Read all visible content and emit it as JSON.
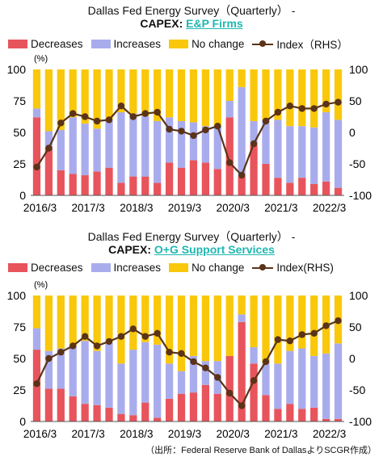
{
  "chart_data": [
    {
      "type": "bar",
      "title": "Dallas Fed Energy Survey（Quarterly）  -",
      "subtitle_prefix": "CAPEX:",
      "subtitle_highlight": "E&P Firms",
      "y_unit": "(%)",
      "stacked": true,
      "ylim": [
        0,
        100
      ],
      "yticks": [
        "0",
        "25",
        "50",
        "75",
        "100"
      ],
      "y2lim": [
        -100,
        100
      ],
      "y2ticks": [
        "-100",
        "-50",
        "0",
        "50",
        "100"
      ],
      "x_tick_labels": [
        "2016/3",
        "2017/3",
        "2018/3",
        "2019/3",
        "2020/3",
        "2021/3",
        "2022/3"
      ],
      "legend": [
        "Decreases",
        "Increases",
        "No change",
        "Index（RHS）"
      ],
      "categories": [
        "2016Q1",
        "2016Q2",
        "2016Q3",
        "2016Q4",
        "2017Q1",
        "2017Q2",
        "2017Q3",
        "2017Q4",
        "2018Q1",
        "2018Q2",
        "2018Q3",
        "2018Q4",
        "2019Q1",
        "2019Q2",
        "2019Q3",
        "2019Q4",
        "2020Q1",
        "2020Q2",
        "2020Q3",
        "2020Q4",
        "2021Q1",
        "2021Q2",
        "2021Q3",
        "2021Q4",
        "2022Q1",
        "2022Q2"
      ],
      "series": [
        {
          "name": "Decreases",
          "values": [
            62,
            38,
            20,
            17,
            16,
            19,
            22,
            10,
            15,
            15,
            10,
            26,
            22,
            28,
            26,
            21,
            62,
            15,
            40,
            25,
            14,
            10,
            14,
            9,
            11,
            6
          ],
          "color": "#e8545c"
        },
        {
          "name": "Increases",
          "values": [
            7,
            13,
            32,
            45,
            41,
            34,
            38,
            56,
            50,
            48,
            49,
            36,
            37,
            30,
            29,
            34,
            13,
            71,
            19,
            35,
            46,
            45,
            41,
            45,
            55,
            54
          ],
          "color": "#a9acec"
        },
        {
          "name": "No change",
          "values": [
            31,
            49,
            48,
            38,
            43,
            47,
            40,
            34,
            35,
            37,
            41,
            38,
            41,
            42,
            45,
            45,
            25,
            14,
            41,
            40,
            40,
            45,
            45,
            46,
            34,
            40
          ],
          "color": "#f9c80b"
        },
        {
          "name": "Index（RHS）",
          "values": [
            -55,
            -25,
            15,
            30,
            25,
            18,
            20,
            42,
            25,
            30,
            32,
            5,
            2,
            -5,
            4,
            10,
            -48,
            -68,
            -18,
            18,
            32,
            42,
            38,
            38,
            45,
            48
          ],
          "color": "#5a3318",
          "axis": "right"
        }
      ]
    },
    {
      "type": "bar",
      "title": "Dallas Fed Energy Survey（Quarterly）  -",
      "subtitle_prefix": "CAPEX:",
      "subtitle_highlight": "O+G Support Services",
      "y_unit": "(%)",
      "stacked": true,
      "ylim": [
        0,
        100
      ],
      "yticks": [
        "0",
        "25",
        "50",
        "75",
        "100"
      ],
      "y2lim": [
        -100,
        100
      ],
      "y2ticks": [
        "-100",
        "-50",
        "0",
        "50",
        "100"
      ],
      "x_tick_labels": [
        "2016/3",
        "2017/3",
        "2018/3",
        "2019/3",
        "2020/3",
        "2021/3",
        "2022/3"
      ],
      "legend": [
        "Decreases",
        "Increases",
        "No change",
        "Index(RHS)"
      ],
      "categories": [
        "2016Q1",
        "2016Q2",
        "2016Q3",
        "2016Q4",
        "2017Q1",
        "2017Q2",
        "2017Q3",
        "2017Q4",
        "2018Q1",
        "2018Q2",
        "2018Q3",
        "2018Q4",
        "2019Q1",
        "2019Q2",
        "2019Q3",
        "2019Q4",
        "2020Q1",
        "2020Q2",
        "2020Q3",
        "2020Q4",
        "2021Q1",
        "2021Q2",
        "2021Q3",
        "2021Q4",
        "2022Q1",
        "2022Q2"
      ],
      "series": [
        {
          "name": "Decreases",
          "values": [
            57,
            26,
            26,
            20,
            14,
            13,
            11,
            6,
            5,
            15,
            3,
            18,
            22,
            23,
            29,
            22,
            52,
            79,
            46,
            21,
            10,
            14,
            10,
            11,
            2,
            2
          ],
          "color": "#e8545c"
        },
        {
          "name": "Increases",
          "values": [
            17,
            30,
            32,
            40,
            50,
            43,
            52,
            40,
            52,
            48,
            58,
            28,
            18,
            29,
            19,
            26,
            0,
            6,
            13,
            25,
            36,
            42,
            48,
            41,
            52,
            60
          ],
          "color": "#a9acec"
        },
        {
          "name": "No change",
          "values": [
            26,
            44,
            42,
            40,
            36,
            44,
            37,
            54,
            43,
            37,
            39,
            54,
            60,
            48,
            52,
            52,
            48,
            15,
            41,
            54,
            54,
            44,
            42,
            48,
            46,
            38
          ],
          "color": "#f9c80b"
        },
        {
          "name": "Index(RHS)",
          "values": [
            -40,
            0,
            10,
            20,
            35,
            20,
            27,
            35,
            47,
            35,
            40,
            10,
            8,
            -5,
            -15,
            -30,
            -55,
            -75,
            -35,
            -5,
            30,
            28,
            38,
            40,
            52,
            60
          ],
          "color": "#5a3318",
          "axis": "right"
        }
      ]
    }
  ],
  "source": "（出所：Federal Reserve Bank of DallasよりSCGR作成）"
}
